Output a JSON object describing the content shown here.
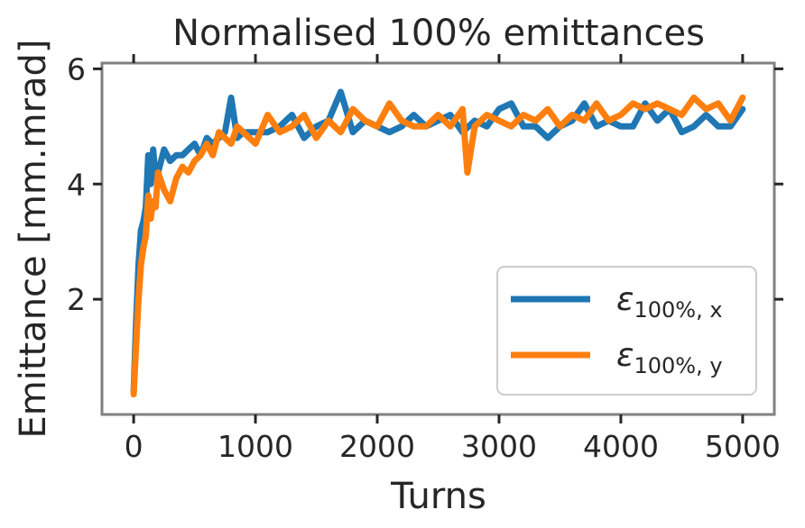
{
  "chart_data": {
    "type": "line",
    "title": "Normalised 100% emittances",
    "xlabel": "Turns",
    "ylabel": "Emittance [mm.mrad]",
    "xlim": [
      -260,
      5260
    ],
    "ylim": [
      0.0,
      6.1
    ],
    "xticks": [
      0,
      1000,
      2000,
      3000,
      4000,
      5000
    ],
    "xtick_labels": [
      "0",
      "1000",
      "2000",
      "3000",
      "4000",
      "5000"
    ],
    "yticks": [
      2,
      4,
      6
    ],
    "ytick_labels": [
      "2",
      "4",
      "6"
    ],
    "grid": false,
    "legend_position": "lower-right",
    "series": [
      {
        "name": "ε100%,x",
        "legend": {
          "symbol": "ε",
          "subscript": "100%, x"
        },
        "color": "#1f77b4",
        "x": [
          0,
          20,
          40,
          60,
          80,
          100,
          120,
          140,
          160,
          180,
          200,
          250,
          300,
          350,
          400,
          450,
          500,
          550,
          600,
          650,
          700,
          750,
          800,
          850,
          900,
          1000,
          1100,
          1200,
          1300,
          1400,
          1500,
          1600,
          1700,
          1800,
          1900,
          2000,
          2100,
          2200,
          2300,
          2400,
          2500,
          2600,
          2700,
          2800,
          2900,
          3000,
          3100,
          3200,
          3300,
          3400,
          3500,
          3600,
          3700,
          3800,
          3900,
          4000,
          4100,
          4200,
          4300,
          4400,
          4500,
          4600,
          4700,
          4800,
          4900,
          5000
        ],
        "y": [
          0.4,
          1.6,
          2.6,
          3.2,
          3.35,
          3.6,
          4.5,
          4.0,
          4.6,
          4.1,
          4.2,
          4.6,
          4.4,
          4.5,
          4.5,
          4.6,
          4.7,
          4.5,
          4.8,
          4.7,
          4.8,
          4.9,
          5.5,
          4.8,
          4.9,
          4.9,
          4.9,
          5.0,
          5.2,
          4.8,
          5.0,
          5.1,
          5.6,
          4.9,
          5.1,
          5.0,
          4.9,
          5.0,
          5.2,
          5.0,
          5.1,
          5.2,
          4.9,
          5.1,
          5.0,
          5.3,
          5.4,
          5.0,
          5.0,
          4.8,
          5.0,
          5.1,
          5.4,
          5.0,
          5.1,
          5.0,
          5.0,
          5.4,
          5.1,
          5.3,
          4.9,
          5.0,
          5.2,
          5.0,
          5.0,
          5.3
        ]
      },
      {
        "name": "ε100%,y",
        "legend": {
          "symbol": "ε",
          "subscript": "100%, y"
        },
        "color": "#ff7f0e",
        "x": [
          0,
          20,
          40,
          60,
          80,
          100,
          120,
          140,
          160,
          180,
          200,
          250,
          300,
          350,
          400,
          450,
          500,
          550,
          600,
          650,
          700,
          750,
          800,
          850,
          900,
          1000,
          1100,
          1200,
          1300,
          1400,
          1500,
          1600,
          1700,
          1800,
          1900,
          2000,
          2100,
          2200,
          2300,
          2400,
          2500,
          2600,
          2700,
          2740,
          2800,
          2900,
          3000,
          3100,
          3200,
          3300,
          3400,
          3500,
          3600,
          3700,
          3800,
          3900,
          4000,
          4100,
          4200,
          4300,
          4400,
          4500,
          4600,
          4700,
          4800,
          4900,
          5000
        ],
        "y": [
          0.35,
          1.2,
          2.0,
          2.6,
          2.9,
          3.1,
          3.8,
          3.4,
          3.7,
          3.6,
          4.2,
          3.9,
          3.7,
          4.1,
          4.3,
          4.2,
          4.4,
          4.5,
          4.7,
          4.5,
          4.9,
          4.8,
          4.7,
          5.0,
          4.9,
          4.7,
          5.2,
          4.9,
          5.0,
          5.2,
          4.8,
          5.1,
          4.9,
          5.3,
          5.1,
          5.0,
          5.4,
          5.1,
          5.0,
          5.0,
          5.2,
          5.0,
          5.3,
          4.2,
          5.0,
          5.2,
          5.1,
          5.0,
          5.2,
          5.1,
          5.3,
          5.0,
          5.2,
          5.1,
          5.4,
          5.1,
          5.2,
          5.4,
          5.3,
          5.4,
          5.3,
          5.2,
          5.5,
          5.3,
          5.4,
          5.1,
          5.5
        ]
      }
    ]
  }
}
